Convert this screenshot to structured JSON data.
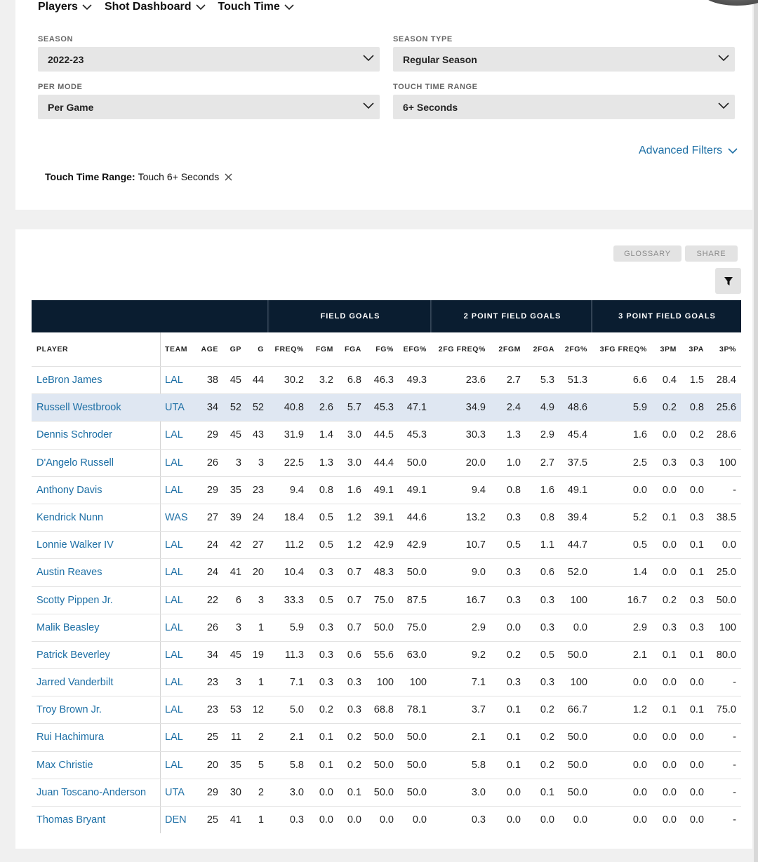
{
  "nav": {
    "players": "Players",
    "shot_dashboard": "Shot Dashboard",
    "touch_time": "Touch Time"
  },
  "filters": {
    "season": {
      "label": "SEASON",
      "value": "2022-23"
    },
    "season_type": {
      "label": "SEASON TYPE",
      "value": "Regular Season"
    },
    "per_mode": {
      "label": "PER MODE",
      "value": "Per Game"
    },
    "touch_time_range": {
      "label": "TOUCH TIME RANGE",
      "value": "6+ Seconds"
    },
    "advanced": "Advanced Filters",
    "chip_key": "Touch Time Range:",
    "chip_value": "Touch 6+ Seconds"
  },
  "actions": {
    "glossary": "GLOSSARY",
    "share": "SHARE"
  },
  "table": {
    "groups": [
      "FIELD GOALS",
      "2 POINT FIELD GOALS",
      "3 POINT FIELD GOALS"
    ],
    "columns": [
      "PLAYER",
      "TEAM",
      "AGE",
      "GP",
      "G",
      "FREQ%",
      "FGM",
      "FGA",
      "FG%",
      "EFG%",
      "2FG FREQ%",
      "2FGM",
      "2FGA",
      "2FG%",
      "3FG FREQ%",
      "3PM",
      "3PA",
      "3P%"
    ],
    "rows": [
      [
        "LeBron James",
        "LAL",
        "38",
        "45",
        "44",
        "30.2",
        "3.2",
        "6.8",
        "46.3",
        "49.3",
        "23.6",
        "2.7",
        "5.3",
        "51.3",
        "6.6",
        "0.4",
        "1.5",
        "28.4"
      ],
      [
        "Russell Westbrook",
        "UTA",
        "34",
        "52",
        "52",
        "40.8",
        "2.6",
        "5.7",
        "45.3",
        "47.1",
        "34.9",
        "2.4",
        "4.9",
        "48.6",
        "5.9",
        "0.2",
        "0.8",
        "25.6"
      ],
      [
        "Dennis Schroder",
        "LAL",
        "29",
        "45",
        "43",
        "31.9",
        "1.4",
        "3.0",
        "44.5",
        "45.3",
        "30.3",
        "1.3",
        "2.9",
        "45.4",
        "1.6",
        "0.0",
        "0.2",
        "28.6"
      ],
      [
        "D'Angelo Russell",
        "LAL",
        "26",
        "3",
        "3",
        "22.5",
        "1.3",
        "3.0",
        "44.4",
        "50.0",
        "20.0",
        "1.0",
        "2.7",
        "37.5",
        "2.5",
        "0.3",
        "0.3",
        "100"
      ],
      [
        "Anthony Davis",
        "LAL",
        "29",
        "35",
        "23",
        "9.4",
        "0.8",
        "1.6",
        "49.1",
        "49.1",
        "9.4",
        "0.8",
        "1.6",
        "49.1",
        "0.0",
        "0.0",
        "0.0",
        "-"
      ],
      [
        "Kendrick Nunn",
        "WAS",
        "27",
        "39",
        "24",
        "18.4",
        "0.5",
        "1.2",
        "39.1",
        "44.6",
        "13.2",
        "0.3",
        "0.8",
        "39.4",
        "5.2",
        "0.1",
        "0.3",
        "38.5"
      ],
      [
        "Lonnie Walker IV",
        "LAL",
        "24",
        "42",
        "27",
        "11.2",
        "0.5",
        "1.2",
        "42.9",
        "42.9",
        "10.7",
        "0.5",
        "1.1",
        "44.7",
        "0.5",
        "0.0",
        "0.1",
        "0.0"
      ],
      [
        "Austin Reaves",
        "LAL",
        "24",
        "41",
        "20",
        "10.4",
        "0.3",
        "0.7",
        "48.3",
        "50.0",
        "9.0",
        "0.3",
        "0.6",
        "52.0",
        "1.4",
        "0.0",
        "0.1",
        "25.0"
      ],
      [
        "Scotty Pippen Jr.",
        "LAL",
        "22",
        "6",
        "3",
        "33.3",
        "0.5",
        "0.7",
        "75.0",
        "87.5",
        "16.7",
        "0.3",
        "0.3",
        "100",
        "16.7",
        "0.2",
        "0.3",
        "50.0"
      ],
      [
        "Malik Beasley",
        "LAL",
        "26",
        "3",
        "1",
        "5.9",
        "0.3",
        "0.7",
        "50.0",
        "75.0",
        "2.9",
        "0.0",
        "0.3",
        "0.0",
        "2.9",
        "0.3",
        "0.3",
        "100"
      ],
      [
        "Patrick Beverley",
        "LAL",
        "34",
        "45",
        "19",
        "11.3",
        "0.3",
        "0.6",
        "55.6",
        "63.0",
        "9.2",
        "0.2",
        "0.5",
        "50.0",
        "2.1",
        "0.1",
        "0.1",
        "80.0"
      ],
      [
        "Jarred Vanderbilt",
        "LAL",
        "23",
        "3",
        "1",
        "7.1",
        "0.3",
        "0.3",
        "100",
        "100",
        "7.1",
        "0.3",
        "0.3",
        "100",
        "0.0",
        "0.0",
        "0.0",
        "-"
      ],
      [
        "Troy Brown Jr.",
        "LAL",
        "23",
        "53",
        "12",
        "5.0",
        "0.2",
        "0.3",
        "68.8",
        "78.1",
        "3.7",
        "0.1",
        "0.2",
        "66.7",
        "1.2",
        "0.1",
        "0.1",
        "75.0"
      ],
      [
        "Rui Hachimura",
        "LAL",
        "25",
        "11",
        "2",
        "2.1",
        "0.1",
        "0.2",
        "50.0",
        "50.0",
        "2.1",
        "0.1",
        "0.2",
        "50.0",
        "0.0",
        "0.0",
        "0.0",
        "-"
      ],
      [
        "Max Christie",
        "LAL",
        "20",
        "35",
        "5",
        "5.8",
        "0.1",
        "0.2",
        "50.0",
        "50.0",
        "5.8",
        "0.1",
        "0.2",
        "50.0",
        "0.0",
        "0.0",
        "0.0",
        "-"
      ],
      [
        "Juan Toscano-Anderson",
        "UTA",
        "29",
        "30",
        "2",
        "3.0",
        "0.0",
        "0.1",
        "50.0",
        "50.0",
        "3.0",
        "0.0",
        "0.1",
        "50.0",
        "0.0",
        "0.0",
        "0.0",
        "-"
      ],
      [
        "Thomas Bryant",
        "DEN",
        "25",
        "41",
        "1",
        "0.3",
        "0.0",
        "0.0",
        "0.0",
        "0.0",
        "0.3",
        "0.0",
        "0.0",
        "0.0",
        "0.0",
        "0.0",
        "0.0",
        "-"
      ]
    ],
    "highlighted_row": 1
  },
  "colors": {
    "link": "#1d6fa5",
    "header_bg": "#0a1d30",
    "highlight_row": "#dfe7f2"
  }
}
